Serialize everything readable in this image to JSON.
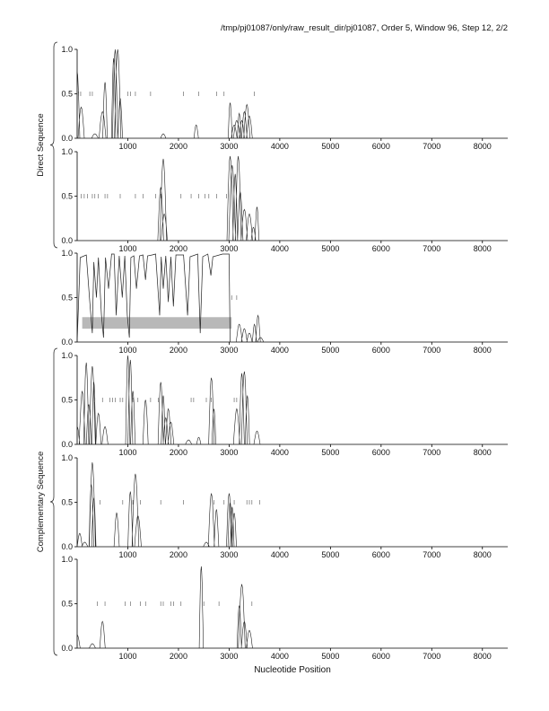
{
  "header": "/tmp/pj01087/only/raw_result_dir/pj01087, Order 5, Window 96, Step 12, 2/2",
  "chart_data": {
    "type": "line",
    "xlabel": "Nucleotide Position",
    "xlim": [
      0,
      8500
    ],
    "ylim": [
      0,
      1.0
    ],
    "xticks": [
      "1000",
      "2000",
      "3000",
      "4000",
      "5000",
      "6000",
      "7000",
      "8000"
    ],
    "yticks": [
      "0.0",
      "0.5",
      "1.0"
    ],
    "groups": [
      {
        "label": "Direct Sequence",
        "panels": [
          0,
          1
        ]
      },
      {
        "label": "Complementary Sequence",
        "panels": [
          3,
          4,
          5
        ]
      }
    ],
    "panels": [
      {
        "peaks": [
          [
            0,
            0.75
          ],
          [
            80,
            0.35
          ],
          [
            350,
            0.05
          ],
          [
            500,
            0.3
          ],
          [
            550,
            0.63
          ],
          [
            720,
            0.9
          ],
          [
            750,
            1.0
          ],
          [
            800,
            1.0
          ],
          [
            850,
            0.45
          ],
          [
            1700,
            0.05
          ],
          [
            2350,
            0.15
          ],
          [
            3020,
            0.4
          ],
          [
            3100,
            0.15
          ],
          [
            3150,
            0.2
          ],
          [
            3200,
            0.28
          ],
          [
            3250,
            0.2
          ],
          [
            3300,
            0.3
          ],
          [
            3350,
            0.38
          ],
          [
            3400,
            0.25
          ]
        ],
        "ticks": [
          30,
          70,
          250,
          300,
          1000,
          1050,
          1150,
          1450,
          2100,
          2400,
          2750,
          2900,
          3500
        ]
      },
      {
        "peaks": [
          [
            1650,
            0.6
          ],
          [
            1700,
            0.92
          ],
          [
            1720,
            0.3
          ],
          [
            3020,
            0.95
          ],
          [
            3060,
            0.85
          ],
          [
            3120,
            0.75
          ],
          [
            3180,
            0.95
          ],
          [
            3220,
            0.55
          ],
          [
            3300,
            0.35
          ],
          [
            3400,
            0.3
          ],
          [
            3480,
            0.15
          ],
          [
            3550,
            0.38
          ]
        ],
        "ticks": [
          80,
          140,
          200,
          300,
          350,
          420,
          550,
          600,
          850,
          1150,
          1300,
          1550,
          1650,
          2050,
          2250,
          2400,
          2520,
          2600,
          2750,
          2950
        ]
      },
      {
        "plateau": [
          [
            0,
            0
          ],
          [
            60,
            0.95
          ],
          [
            180,
            0.98
          ],
          [
            250,
            0.45
          ],
          [
            300,
            0.1
          ],
          [
            330,
            0.9
          ],
          [
            380,
            0.5
          ],
          [
            420,
            0.95
          ],
          [
            480,
            0.3
          ],
          [
            520,
            0.05
          ],
          [
            560,
            0.95
          ],
          [
            620,
            0.6
          ],
          [
            680,
            0.99
          ],
          [
            730,
            0.99
          ],
          [
            770,
            0.3
          ],
          [
            830,
            0.97
          ],
          [
            890,
            0.5
          ],
          [
            940,
            0.97
          ],
          [
            990,
            0.3
          ],
          [
            1030,
            0.05
          ],
          [
            1060,
            0.95
          ],
          [
            1120,
            0.97
          ],
          [
            1170,
            0.6
          ],
          [
            1230,
            0.97
          ],
          [
            1300,
            0.98
          ],
          [
            1350,
            0.7
          ],
          [
            1390,
            0.97
          ],
          [
            1480,
            0.98
          ],
          [
            1550,
            0.99
          ],
          [
            1630,
            0.3
          ],
          [
            1660,
            0.96
          ],
          [
            1700,
            0.6
          ],
          [
            1750,
            0.97
          ],
          [
            1800,
            0.45
          ],
          [
            1850,
            0.96
          ],
          [
            1900,
            0.4
          ],
          [
            1950,
            0.98
          ],
          [
            2100,
            0.98
          ],
          [
            2180,
            0.3
          ],
          [
            2230,
            0.96
          ],
          [
            2380,
            0.99
          ],
          [
            2430,
            0.1
          ],
          [
            2480,
            0.96
          ],
          [
            2580,
            0.99
          ],
          [
            2640,
            0.75
          ],
          [
            2680,
            0.96
          ],
          [
            2870,
            0.99
          ],
          [
            2950,
            0.99
          ],
          [
            3000,
            0.99
          ],
          [
            3020,
            0.0
          ]
        ],
        "peaks": [
          [
            3200,
            0.2
          ],
          [
            3300,
            0.15
          ],
          [
            3400,
            0.1
          ],
          [
            3500,
            0.2
          ],
          [
            3570,
            0.3
          ],
          [
            3620,
            0.05
          ]
        ],
        "band": [
          100,
          3050,
          0.15,
          0.28
        ],
        "ticks": [
          3050,
          3150
        ]
      },
      {
        "peaks": [
          [
            0,
            0.2
          ],
          [
            100,
            0.6
          ],
          [
            180,
            0.92
          ],
          [
            230,
            0.45
          ],
          [
            300,
            0.88
          ],
          [
            330,
            0.7
          ],
          [
            420,
            0.35
          ],
          [
            550,
            0.2
          ],
          [
            1000,
            1.0
          ],
          [
            1050,
            0.95
          ],
          [
            1100,
            0.6
          ],
          [
            1350,
            0.5
          ],
          [
            1650,
            0.7
          ],
          [
            1700,
            0.55
          ],
          [
            1750,
            0.3
          ],
          [
            1800,
            0.4
          ],
          [
            1850,
            0.25
          ],
          [
            2200,
            0.05
          ],
          [
            2400,
            0.08
          ],
          [
            2650,
            0.75
          ],
          [
            2700,
            0.4
          ],
          [
            3150,
            0.4
          ],
          [
            3250,
            0.8
          ],
          [
            3300,
            0.82
          ],
          [
            3360,
            0.55
          ],
          [
            3550,
            0.15
          ]
        ],
        "ticks": [
          350,
          500,
          650,
          700,
          750,
          850,
          900,
          1100,
          1200,
          1450,
          1600,
          2250,
          2300,
          2550,
          2650,
          3100,
          3150,
          3350
        ]
      },
      {
        "peaks": [
          [
            50,
            0.15
          ],
          [
            150,
            0.05
          ],
          [
            280,
            0.7
          ],
          [
            300,
            0.95
          ],
          [
            330,
            0.55
          ],
          [
            780,
            0.38
          ],
          [
            1050,
            0.62
          ],
          [
            1150,
            0.82
          ],
          [
            1200,
            0.35
          ],
          [
            2550,
            0.05
          ],
          [
            2650,
            0.6
          ],
          [
            2750,
            0.42
          ],
          [
            3000,
            0.6
          ],
          [
            3020,
            0.5
          ],
          [
            3060,
            0.45
          ],
          [
            3100,
            0.38
          ]
        ],
        "ticks": [
          450,
          900,
          1100,
          1250,
          1650,
          2100,
          2700,
          2900,
          3100,
          3350,
          3400,
          3450,
          3600
        ]
      },
      {
        "peaks": [
          [
            0,
            0.15
          ],
          [
            300,
            0.05
          ],
          [
            500,
            0.3
          ],
          [
            2450,
            0.92
          ],
          [
            3200,
            0.48
          ],
          [
            3250,
            0.72
          ],
          [
            3300,
            0.3
          ],
          [
            3400,
            0.2
          ]
        ],
        "ticks": [
          400,
          550,
          950,
          1050,
          1250,
          1350,
          1650,
          1700,
          1850,
          1900,
          2050,
          2500,
          2800,
          3450
        ]
      }
    ]
  }
}
